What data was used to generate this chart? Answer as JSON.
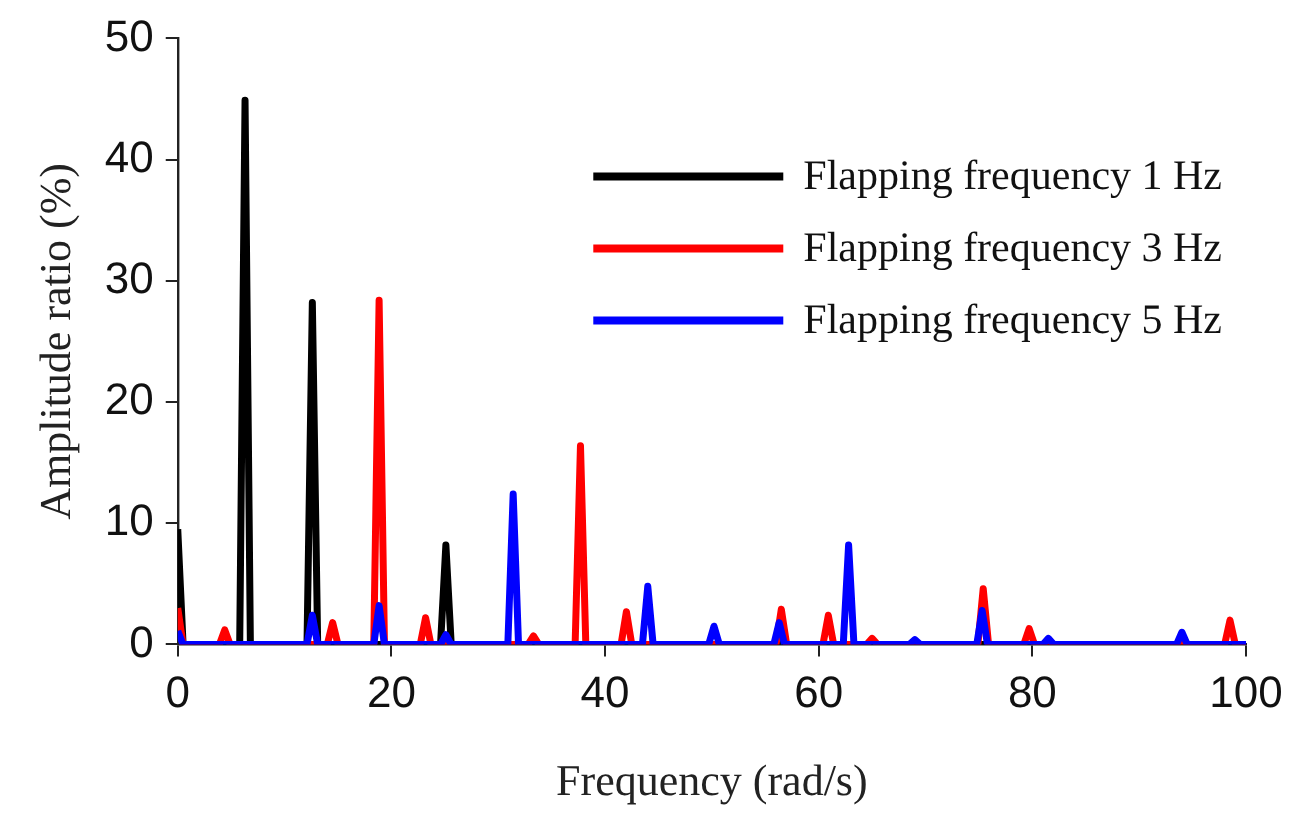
{
  "chart_data": {
    "type": "line",
    "xlabel": "Frequency (rad/s)",
    "ylabel": "Amplitude ratio (%)",
    "xlim": [
      0,
      100
    ],
    "xticks": [
      0,
      20,
      40,
      60,
      80,
      100
    ],
    "ylim": [
      0,
      50
    ],
    "yticks": [
      0,
      10,
      20,
      30,
      40,
      50
    ],
    "grid": false,
    "legend": "top right",
    "marker": "none",
    "line_style": "solid",
    "series": [
      {
        "name": "Flapping frequency 1 Hz",
        "color": "#000000",
        "x": [
          0,
          0.5,
          5.8,
          6.3,
          6.8,
          12.1,
          12.6,
          13.1,
          24.6,
          25.1,
          25.6,
          100
        ],
        "values": [
          9.5,
          0,
          0,
          44.9,
          0,
          0,
          28.2,
          0,
          0,
          8.2,
          0,
          0
        ]
      },
      {
        "name": "Flapping frequency 3 Hz",
        "color": "#ff0000",
        "x": [
          0,
          0.5,
          3.9,
          4.4,
          4.9,
          14,
          14.5,
          15,
          18.35,
          18.85,
          19.35,
          22.7,
          23.2,
          23.7,
          32.8,
          33.3,
          33.8,
          37.2,
          37.7,
          38.2,
          41.5,
          42,
          42.5,
          56,
          56.5,
          57,
          60.4,
          60.9,
          61.4,
          64.5,
          65,
          65.5,
          74.9,
          75.4,
          75.9,
          79.2,
          79.7,
          80.2,
          98,
          98.5,
          99,
          100
        ],
        "values": [
          3,
          0,
          0,
          1.2,
          0,
          0,
          1.8,
          0,
          0,
          28.4,
          0,
          0,
          2.2,
          0,
          0,
          0.7,
          0,
          0,
          16.4,
          0,
          0,
          2.7,
          0,
          0,
          2.9,
          0,
          0,
          2.4,
          0,
          0,
          0.5,
          0,
          0,
          4.6,
          0,
          0,
          1.3,
          0,
          0,
          2,
          0,
          0
        ]
      },
      {
        "name": "Flapping frequency 5 Hz",
        "color": "#0000ff",
        "x": [
          0,
          0.5,
          12.1,
          12.6,
          13.1,
          18.35,
          18.85,
          19.35,
          24.6,
          25.1,
          25.6,
          30.9,
          31.4,
          31.9,
          43.5,
          44,
          44.5,
          49.7,
          50.2,
          50.7,
          55.8,
          56.3,
          56.8,
          62.3,
          62.8,
          63.3,
          68.5,
          69,
          69.5,
          74.8,
          75.3,
          75.8,
          81,
          81.5,
          82,
          93.5,
          94,
          94.5,
          100
        ],
        "values": [
          1.1,
          0,
          0,
          2.4,
          0,
          0,
          3.2,
          0,
          0,
          0.8,
          0,
          0,
          12.4,
          0,
          0,
          4.8,
          0,
          0,
          1.5,
          0,
          0,
          1.8,
          0,
          0,
          8.2,
          0,
          0,
          0.4,
          0,
          0,
          2.8,
          0,
          0,
          0.5,
          0,
          0,
          1,
          0,
          0
        ]
      }
    ]
  }
}
